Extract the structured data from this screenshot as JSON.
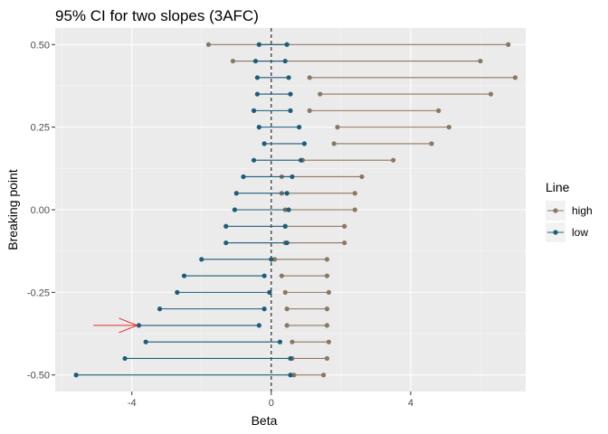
{
  "chart_data": {
    "type": "interval",
    "title": "95% CI for two slopes (3AFC)",
    "xlabel": "Beta",
    "ylabel": "Breaking point",
    "xlim": [
      -6.2,
      7.3
    ],
    "ylim": [
      -0.55,
      0.55
    ],
    "x_ticks": [
      -4,
      0,
      4
    ],
    "x_tick_labels": [
      "-4",
      "0",
      "4"
    ],
    "y_ticks": [
      -0.5,
      -0.25,
      0,
      0.25,
      0.5
    ],
    "y_tick_labels": [
      "-0.50",
      "-0.25",
      "0.00",
      "0.25",
      "0.50"
    ],
    "reference_line_x": 0,
    "grid": true,
    "legend": {
      "title": "Line",
      "position": "right",
      "items": [
        {
          "label": "high",
          "color": "#8b7862"
        },
        {
          "label": "low",
          "color": "#1d5d79"
        }
      ]
    },
    "annotation": {
      "type": "arrow",
      "color": "#e8282b",
      "points_to": {
        "x": -3.8,
        "y": -0.35
      },
      "from_x": -5.1
    },
    "series": [
      {
        "name": "high",
        "color": "#8b7862",
        "y": [
          0.5,
          0.45,
          0.4,
          0.35,
          0.3,
          0.25,
          0.2,
          0.15,
          0.1,
          0.05,
          0.0,
          -0.05,
          -0.1,
          -0.15,
          -0.2,
          -0.25,
          -0.3,
          -0.35,
          -0.4,
          -0.45,
          -0.5
        ],
        "lower": [
          -1.8,
          -1.1,
          1.1,
          1.4,
          1.1,
          1.9,
          1.8,
          0.9,
          0.3,
          0.3,
          0.4,
          0.4,
          0.4,
          0.1,
          0.3,
          0.4,
          0.45,
          0.45,
          0.6,
          0.6,
          0.65
        ],
        "upper": [
          6.8,
          6.0,
          7.0,
          6.3,
          4.8,
          5.1,
          4.6,
          3.5,
          2.6,
          2.4,
          2.4,
          2.1,
          2.1,
          1.6,
          1.6,
          1.65,
          1.6,
          1.6,
          1.65,
          1.6,
          1.5
        ]
      },
      {
        "name": "low",
        "color": "#1d5d79",
        "y": [
          0.5,
          0.45,
          0.4,
          0.35,
          0.3,
          0.25,
          0.2,
          0.15,
          0.1,
          0.05,
          0.0,
          -0.05,
          -0.1,
          -0.15,
          -0.2,
          -0.25,
          -0.3,
          -0.35,
          -0.4,
          -0.45,
          -0.5
        ],
        "lower": [
          -0.35,
          -0.45,
          -0.4,
          -0.4,
          -0.5,
          -0.35,
          -0.2,
          -0.5,
          -0.8,
          -1.0,
          -1.05,
          -1.3,
          -1.3,
          -2.0,
          -2.5,
          -2.7,
          -3.2,
          -3.8,
          -3.6,
          -4.2,
          -5.6
        ],
        "upper": [
          0.45,
          0.4,
          0.5,
          0.55,
          0.55,
          0.8,
          0.95,
          0.85,
          0.6,
          0.45,
          0.5,
          0.4,
          0.45,
          0.0,
          -0.2,
          -0.05,
          -0.2,
          -0.35,
          0.25,
          0.55,
          0.55
        ]
      }
    ]
  }
}
